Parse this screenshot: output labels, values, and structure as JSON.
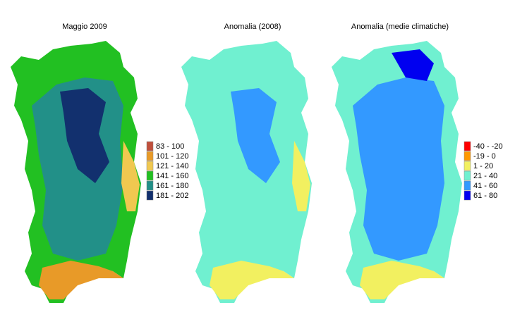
{
  "maps": [
    {
      "title": "Maggio 2009",
      "legend": [
        {
          "label": "83 - 100",
          "color": "#c0503c"
        },
        {
          "label": "101 - 120",
          "color": "#e89a28"
        },
        {
          "label": "121 - 140",
          "color": "#f0c850"
        },
        {
          "label": "141 - 160",
          "color": "#22c022"
        },
        {
          "label": "161 - 180",
          "color": "#229088"
        },
        {
          "label": "181 - 202",
          "color": "#12306e"
        }
      ]
    },
    {
      "title": "Anomalia (2008)"
    },
    {
      "title": "Anomalia (medie climatiche)",
      "legend": [
        {
          "label": "-40 - -20",
          "color": "#ff0000"
        },
        {
          "label": "-19 - 0",
          "color": "#ff9900"
        },
        {
          "label": "1 - 20",
          "color": "#f2f060"
        },
        {
          "label": "21 - 40",
          "color": "#70f0d0"
        },
        {
          "label": "41 - 60",
          "color": "#3399ff"
        },
        {
          "label": "61 - 80",
          "color": "#0000f0"
        }
      ]
    }
  ]
}
